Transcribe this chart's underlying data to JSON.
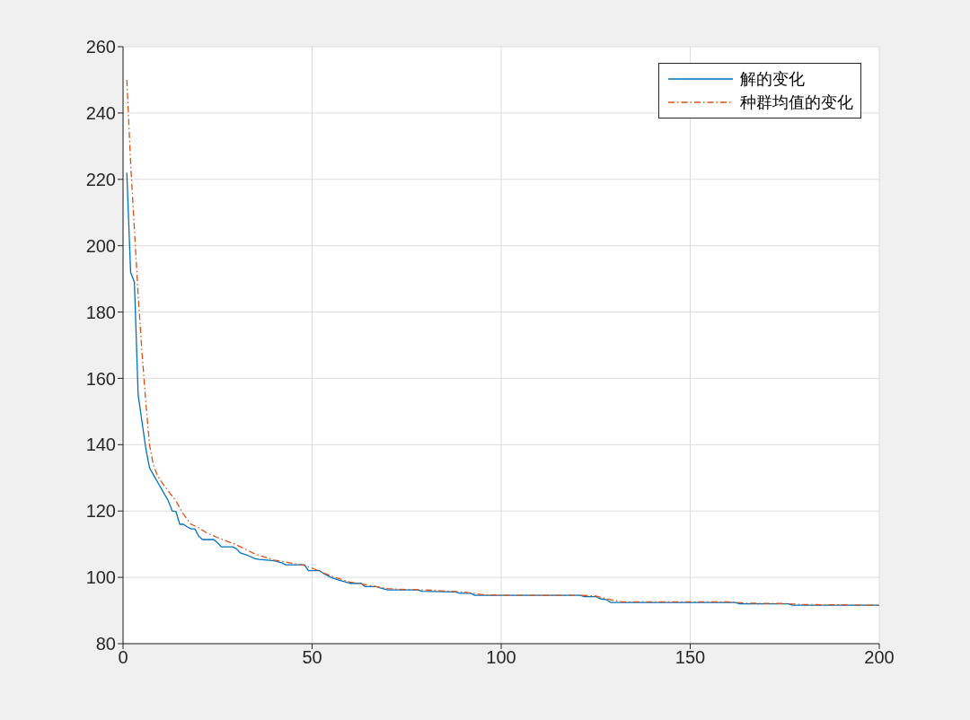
{
  "chart_data": {
    "type": "line",
    "xlim": [
      0,
      200
    ],
    "xticks": [
      0,
      50,
      100,
      150,
      200
    ],
    "ylim": [
      80,
      260
    ],
    "yticks": [
      80,
      100,
      120,
      140,
      160,
      180,
      200,
      220,
      240,
      260
    ],
    "grid": true,
    "legend": "top right",
    "series": [
      {
        "name": "解的变化",
        "color": "#0072bd",
        "line_style": "solid",
        "x": [
          1,
          2,
          3,
          4,
          5,
          6,
          7,
          8,
          9,
          10,
          11,
          12,
          13,
          14,
          15,
          16,
          17,
          18,
          19,
          20,
          21,
          24,
          25,
          26,
          29,
          30,
          31,
          33,
          35,
          36,
          40,
          42,
          43,
          48,
          49,
          52,
          53,
          55,
          57,
          59,
          60,
          63,
          64,
          67,
          68,
          70,
          78,
          79,
          88,
          89,
          92,
          93,
          121,
          122,
          125,
          126,
          128,
          129,
          162,
          163,
          176,
          177,
          200
        ],
        "values": [
          222,
          192,
          189,
          155,
          147,
          139,
          133,
          131,
          129,
          127,
          125,
          123,
          120,
          119.8,
          116,
          116,
          115.2,
          114.6,
          114.6,
          112.4,
          111.4,
          111.4,
          110.4,
          109.2,
          109.2,
          108.6,
          107.4,
          106.6,
          105.6,
          105.4,
          105,
          104.4,
          103.8,
          103.8,
          102,
          102,
          101.2,
          100,
          99.2,
          98.6,
          98.2,
          98.2,
          97.2,
          97.2,
          96.8,
          96.2,
          96.2,
          95.8,
          95.6,
          95.2,
          95.2,
          94.6,
          94.6,
          94.2,
          94.2,
          93.6,
          93.2,
          92.4,
          92.4,
          92,
          92,
          91.6,
          91.6
        ]
      },
      {
        "name": "种群均值的变化",
        "color": "#d95319",
        "line_style": "dashed",
        "x": [
          1,
          2,
          3,
          4,
          5,
          6,
          7,
          8,
          9,
          10,
          12,
          14,
          16,
          18,
          20,
          22,
          25,
          30,
          35,
          40,
          45,
          48,
          50,
          55,
          60,
          65,
          70,
          75,
          80,
          90,
          95,
          100,
          120,
          125,
          128,
          132,
          160,
          165,
          175,
          180,
          200
        ],
        "values": [
          250,
          225,
          205,
          185,
          168,
          153,
          140,
          134,
          131,
          129,
          126,
          123,
          119,
          116,
          115,
          113.5,
          112,
          109.8,
          107,
          105.2,
          104.2,
          103.6,
          102.8,
          100.4,
          98.6,
          97.6,
          96.6,
          96.3,
          96.2,
          95.6,
          94.8,
          94.6,
          94.6,
          94.4,
          93.5,
          92.6,
          92.6,
          92.2,
          92.1,
          91.8,
          91.6
        ]
      }
    ]
  }
}
